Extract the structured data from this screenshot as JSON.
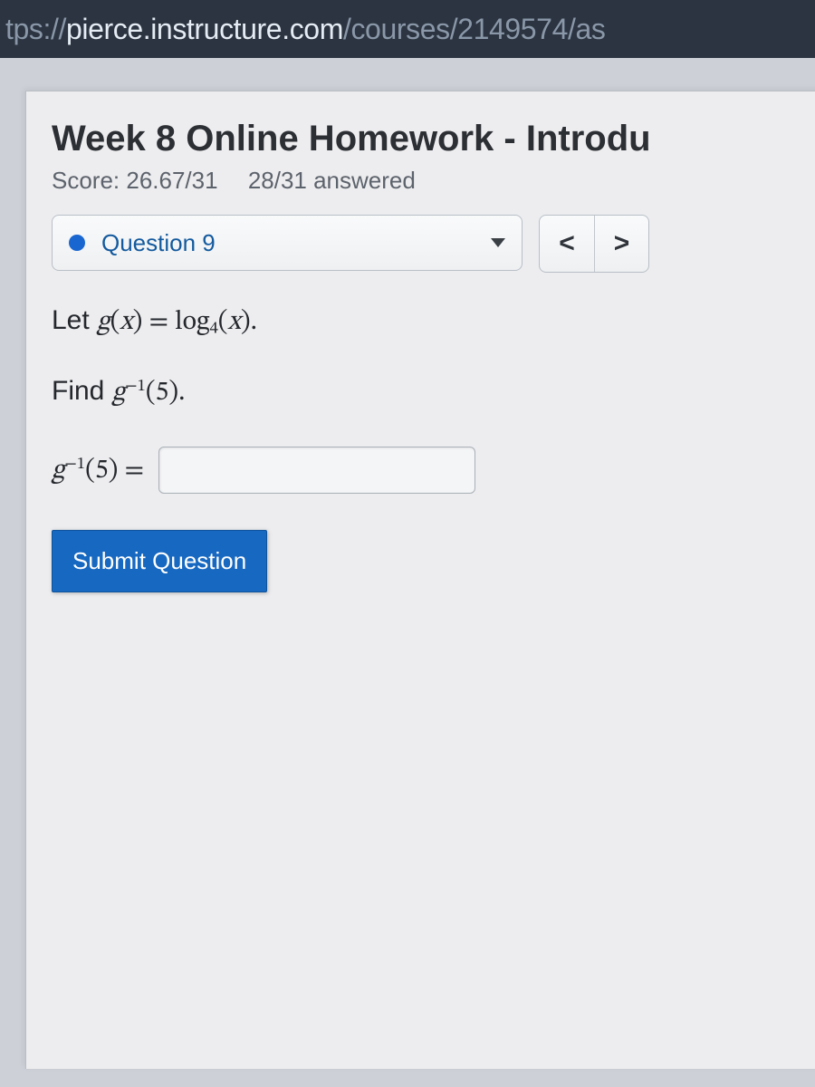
{
  "url": {
    "scheme_left": "tps://",
    "host": "pierce.instructure.com",
    "path": "/courses/2149574/as"
  },
  "assignment": {
    "title": "Week 8 Online Homework - Introdu",
    "score_label": "Score: 26.67/31",
    "answered_label": "28/31 answered"
  },
  "question_selector": {
    "label": "Question 9",
    "status_color": "#1a66d0"
  },
  "nav": {
    "prev_glyph": "<",
    "next_glyph": ">"
  },
  "question": {
    "line1_prefix": "Let ",
    "line1_math_html": "<span class='math'>g<span class='rm'>(</span>x<span class='rm'>)</span> <span class='rm'>=</span> <span class='rm'>log</span><sub class='rm'>4</sub><span class='rm'>(</span>x<span class='rm'>)</span><span class='rm'>.</span></span>",
    "line2_prefix": "Find ",
    "line2_math_html": "<span class='math'>g<sup><span class='rm'>−1</span></sup><span class='rm'>(5).</span></span>",
    "answer_label_html": "<span class='math'>g<sup><span class='rm'>−1</span></sup><span class='rm'>(5)</span> <span class='rm'>=</span></span>",
    "answer_value": ""
  },
  "submit_label": "Submit Question",
  "colors": {
    "urlbar_bg": "#2b3440",
    "page_bg": "#ededef",
    "link": "#145a9e",
    "submit_bg": "#1768c0"
  }
}
